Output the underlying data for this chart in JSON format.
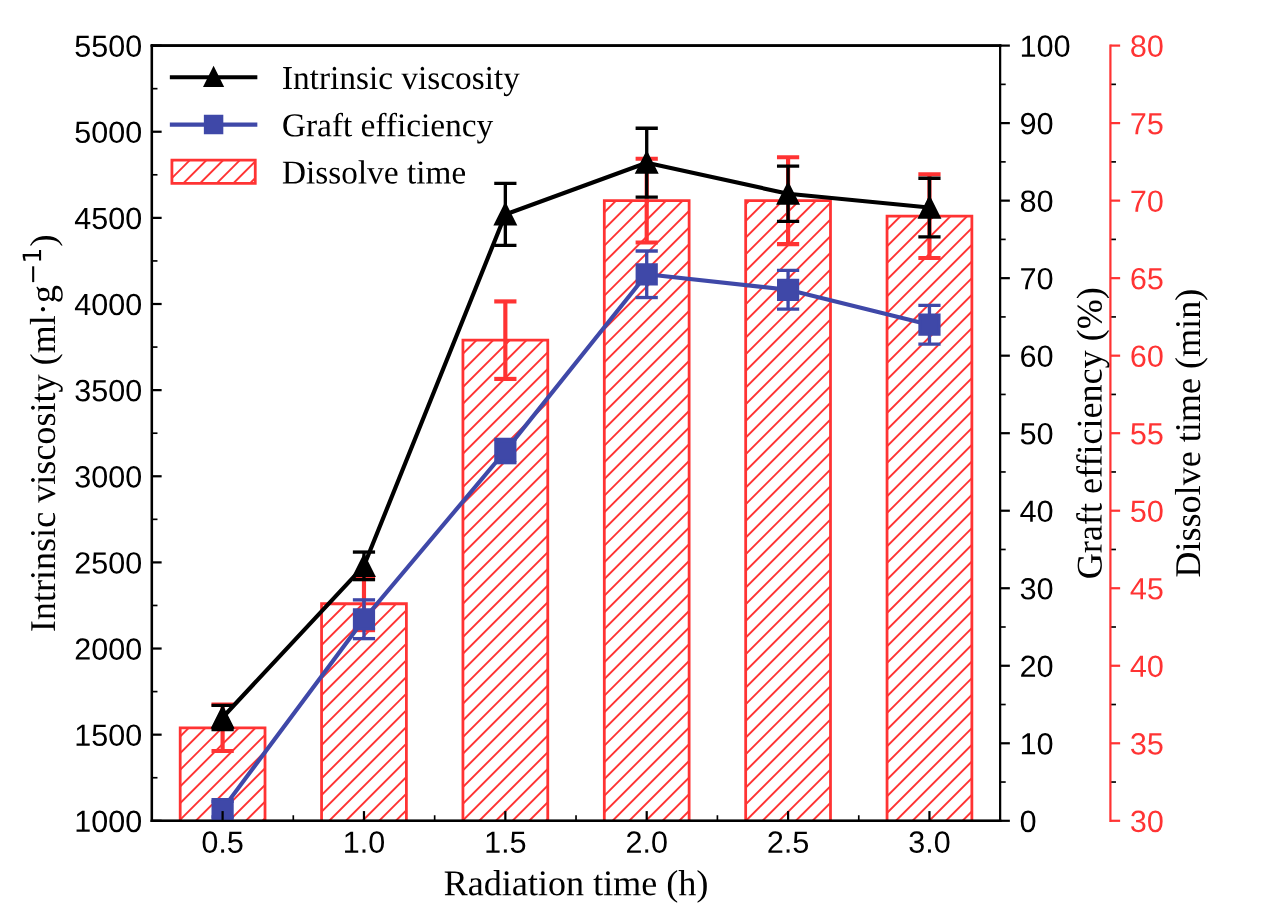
{
  "chart_data": {
    "type": "line",
    "xlabel": "Radiation time (h)",
    "ylabel": "Intrinsic viscosity (ml·g$^{−1}$)",
    "y2label": "Graft efficiency (%)",
    "y3label": "Dissolve time (min)",
    "x": [
      0.5,
      1.0,
      1.5,
      2.0,
      2.5,
      3.0
    ],
    "xlim": [
      0.25,
      3.25
    ],
    "xticks": [
      {
        "value": 0.5,
        "label": "0.5"
      },
      {
        "value": 1.0,
        "label": "1.0"
      },
      {
        "value": 1.5,
        "label": "1.5"
      },
      {
        "value": 2.0,
        "label": "2.0"
      },
      {
        "value": 2.5,
        "label": "2.5"
      },
      {
        "value": 3.0,
        "label": "3.0"
      }
    ],
    "ylim": [
      1000,
      5500
    ],
    "yticks": [
      1000,
      1500,
      2000,
      2500,
      3000,
      3500,
      4000,
      4500,
      5000,
      5500
    ],
    "y2lim": [
      0,
      100
    ],
    "y2ticks": [
      0,
      10,
      20,
      30,
      40,
      50,
      60,
      70,
      80,
      90,
      100
    ],
    "y3lim": [
      30,
      80
    ],
    "y3ticks": [
      30,
      35,
      40,
      45,
      50,
      55,
      60,
      65,
      70,
      75,
      80
    ],
    "legend": "top left",
    "grid": false,
    "series": [
      {
        "name": "Intrinsic viscosity",
        "axis": "y",
        "color": "#000000",
        "marker": "triangle",
        "values": [
          1600,
          2480,
          4520,
          4820,
          4640,
          4560
        ],
        "errors": [
          70,
          80,
          180,
          200,
          160,
          170
        ]
      },
      {
        "name": "Graft efficiency",
        "axis": "y2",
        "color": "#3f48a8",
        "marker": "square",
        "values": [
          1.5,
          26,
          47.7,
          70.5,
          68.5,
          64
        ],
        "errors": [
          1,
          2.5,
          1.5,
          3,
          2.5,
          2.5
        ]
      },
      {
        "name": "Dissolve time",
        "type": "bar",
        "axis": "y3",
        "color": "#ff3333",
        "values": [
          36,
          44,
          61,
          70,
          70,
          69
        ],
        "errors": [
          1.5,
          1.7,
          2.5,
          2.7,
          2.8,
          2.7
        ]
      }
    ]
  }
}
